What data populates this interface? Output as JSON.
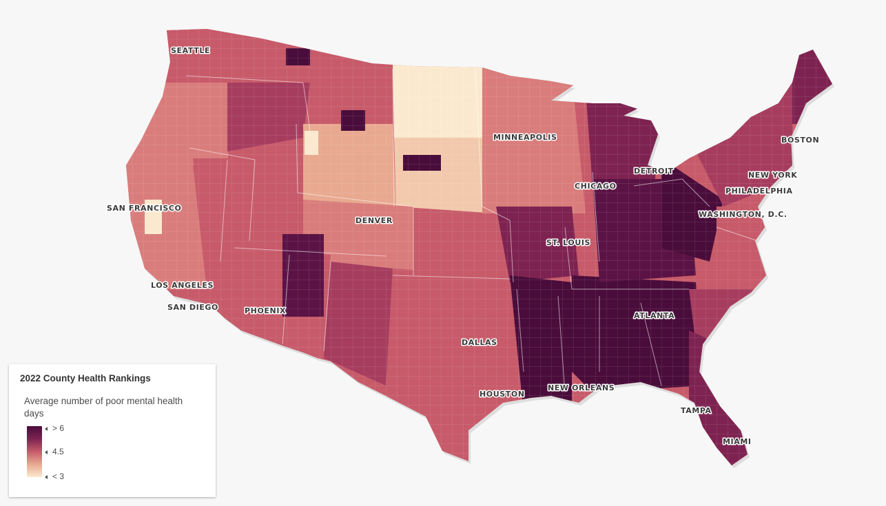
{
  "colors": {
    "background": "#f7f7f7",
    "ramp_high": "#4a0d3b",
    "ramp_mid": "#c75b6a",
    "ramp_low": "#fbe9cf",
    "region_shades": [
      "#fbe9cf",
      "#f2c9ac",
      "#e8a990",
      "#d97d7c",
      "#c75b6a",
      "#a63d5f",
      "#7e2351",
      "#5b1345",
      "#4a0d3b"
    ]
  },
  "cities": [
    {
      "name": "SEATTLE"
    },
    {
      "name": "MINNEAPOLIS"
    },
    {
      "name": "BOSTON"
    },
    {
      "name": "DETROIT"
    },
    {
      "name": "NEW YORK"
    },
    {
      "name": "CHICAGO"
    },
    {
      "name": "PHILADELPHIA"
    },
    {
      "name": "SAN FRANCISCO"
    },
    {
      "name": "WASHINGTON, D.C."
    },
    {
      "name": "DENVER"
    },
    {
      "name": "ST. LOUIS"
    },
    {
      "name": "LOS ANGELES"
    },
    {
      "name": "SAN DIEGO"
    },
    {
      "name": "PHOENIX"
    },
    {
      "name": "ATLANTA"
    },
    {
      "name": "DALLAS"
    },
    {
      "name": "NEW ORLEANS"
    },
    {
      "name": "HOUSTON"
    },
    {
      "name": "TAMPA"
    },
    {
      "name": "MIAMI"
    }
  ],
  "legend": {
    "title": "2022 County Health Rankings",
    "subtitle": "Average number of poor mental health days",
    "stops": [
      {
        "label": "> 6"
      },
      {
        "label": "4.5"
      },
      {
        "label": "< 3"
      }
    ]
  }
}
